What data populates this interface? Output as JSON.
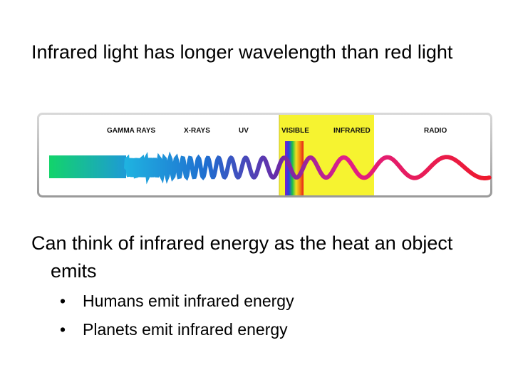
{
  "statement_1": "Infrared light has longer wavelength than red light",
  "statement_2": "Can think of infrared energy as the heat an object emits",
  "bullets": [
    "Humans emit infrared energy",
    "Planets emit infrared energy"
  ],
  "spectrum": {
    "labels": [
      "GAMMA RAYS",
      "X-RAYS",
      "UV",
      "VISIBLE",
      "INFRARED",
      "RADIO"
    ],
    "highlight_color": "#f6f330",
    "wave_colors": [
      "#12d46a",
      "#1e9ad6",
      "#1f6ed0",
      "#6b2aa8",
      "#e01e8a",
      "#ee1a2c"
    ]
  }
}
